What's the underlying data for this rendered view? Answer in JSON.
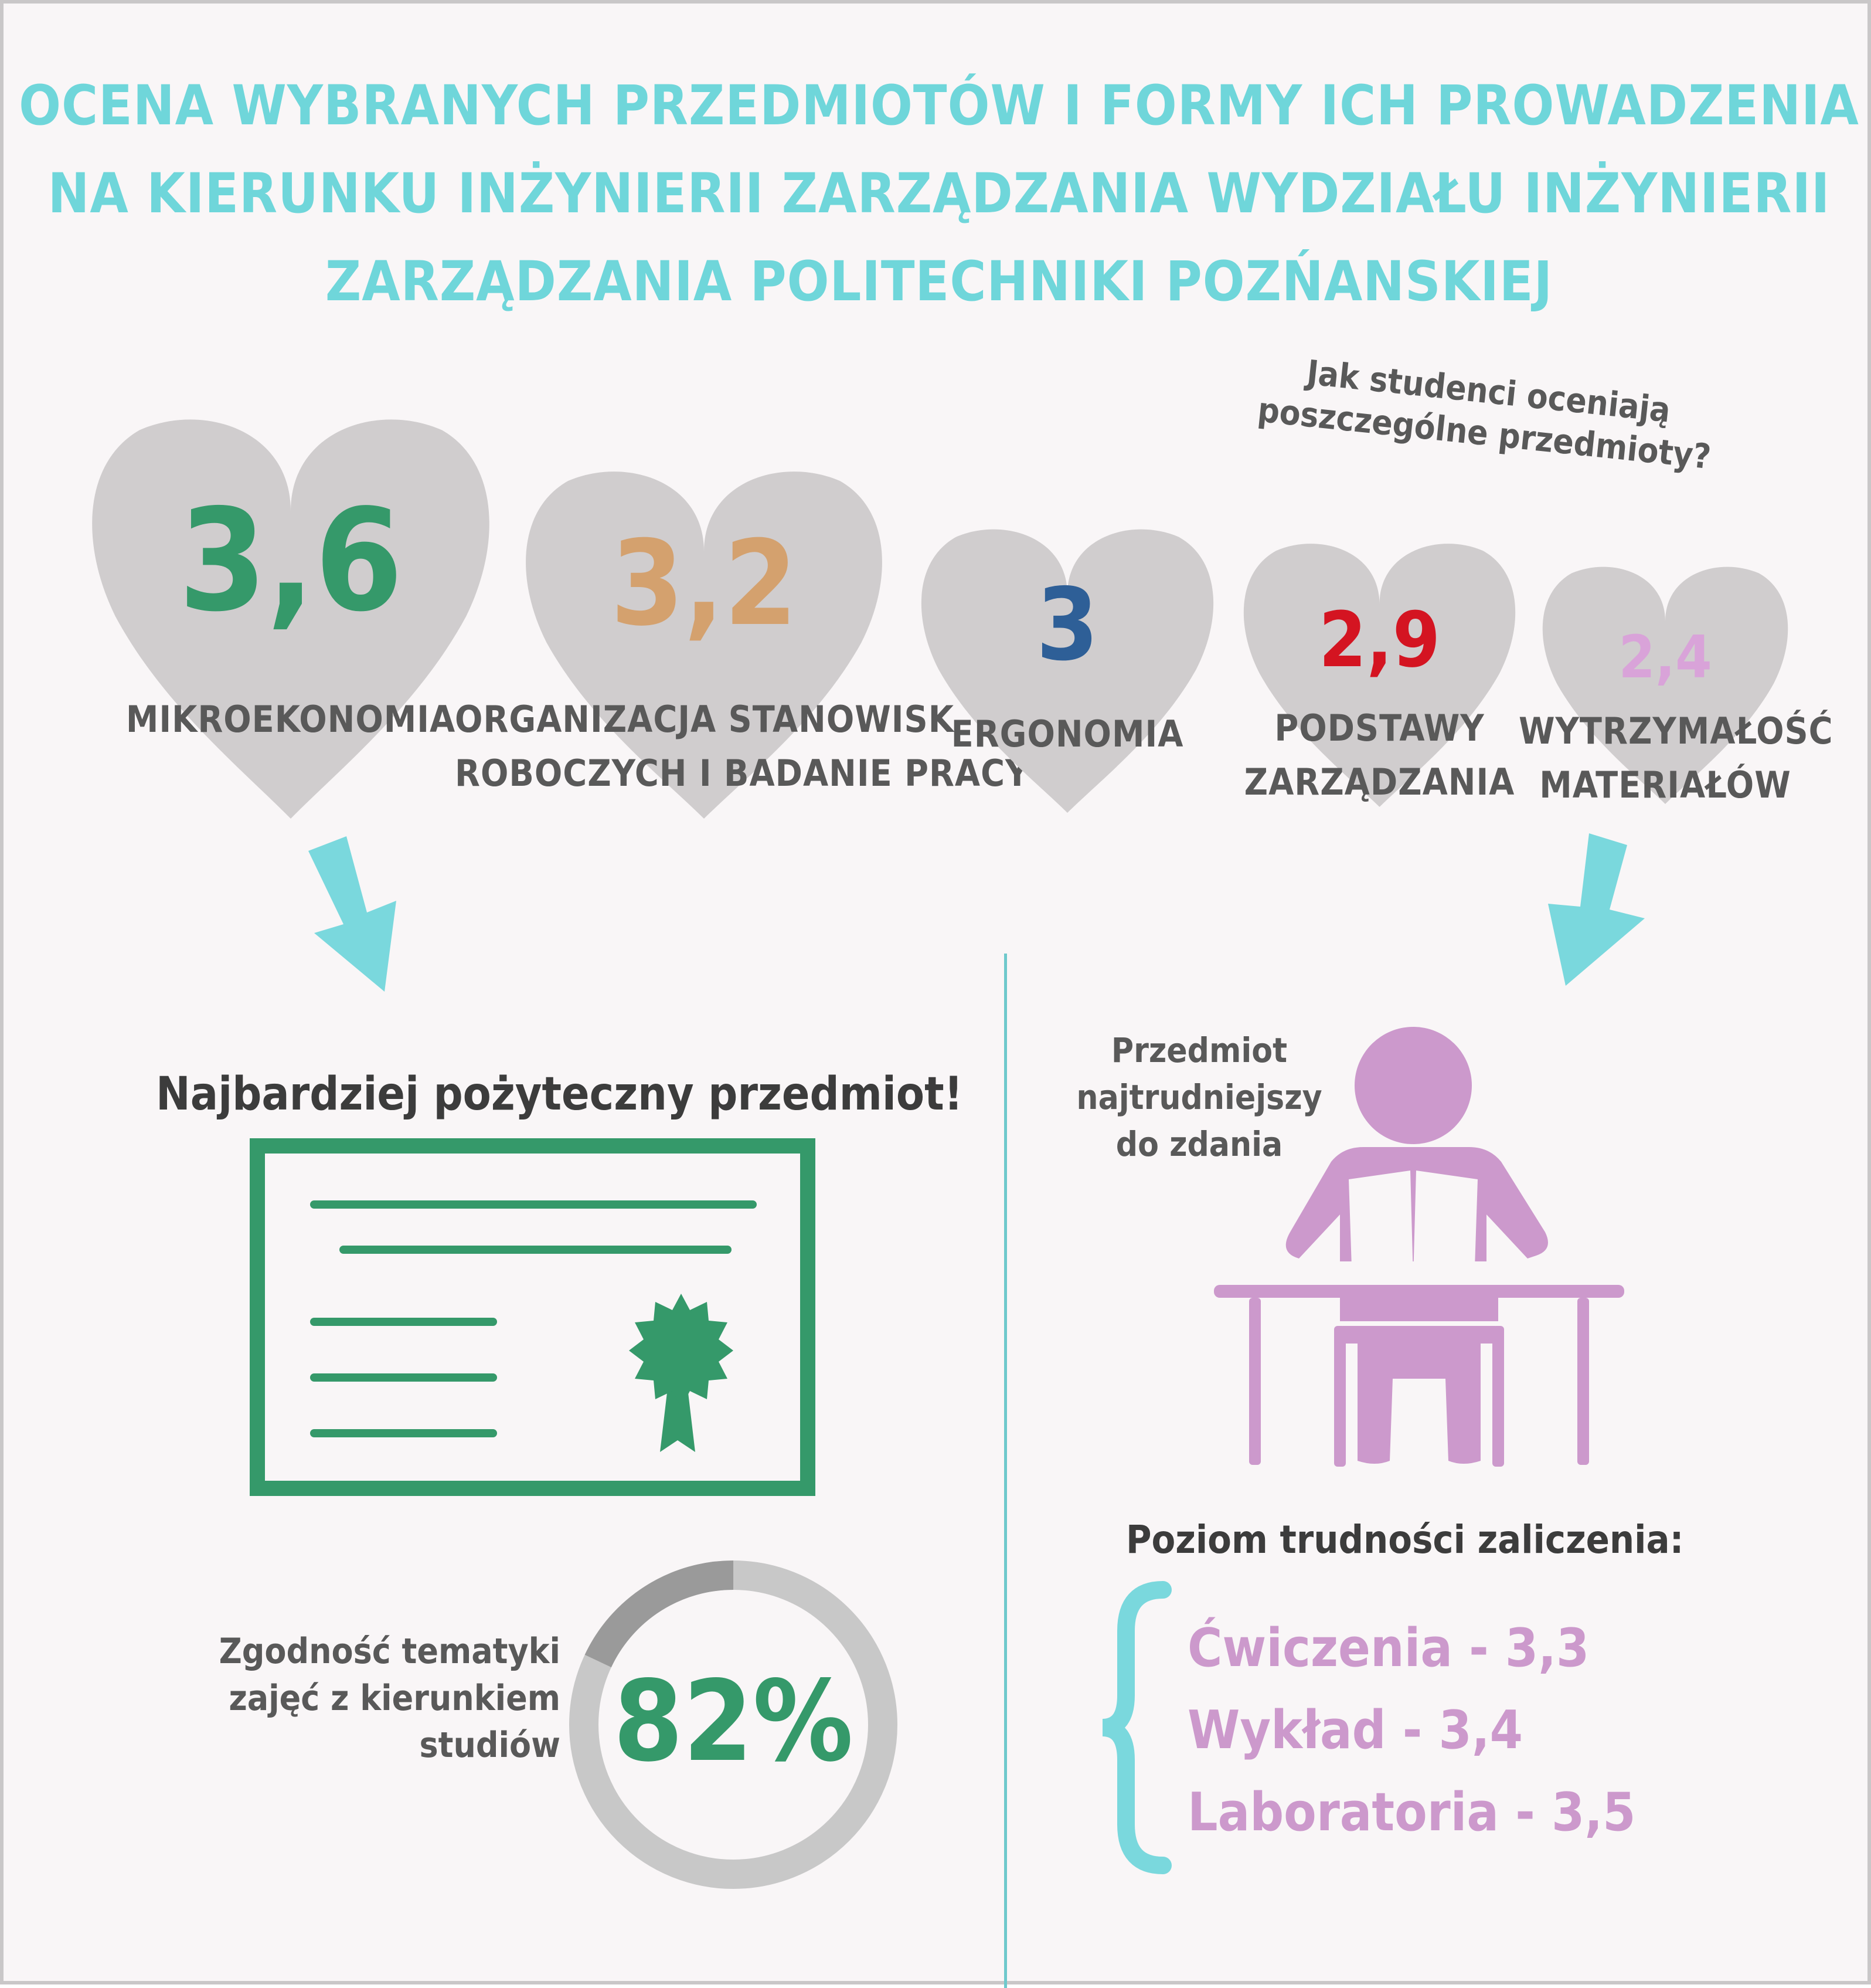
{
  "title": {
    "line1": "OCENA WYBRANYCH PRZEDMIOTÓW I FORMY ICH PROWADZENIA",
    "line2": "NA KIERUNKU INŻYNIERII ZARZĄDZANIA WYDZIAŁU INŻYNIERII",
    "line3": "ZARZĄDZANIA POLITECHNIKI POZŃANSKIEJ"
  },
  "question": {
    "line1": "Jak studenci oceniają",
    "line2": "poszczególne przedmioty?"
  },
  "subjects": [
    {
      "score": "3,6",
      "name": "MIKROEKONOMIA",
      "name2": "",
      "color": "#35996a"
    },
    {
      "score": "3,2",
      "name": "ORGANIZACJA STANOWISK",
      "name2": "ROBOCZYCH I BADANIE PRACY",
      "color": "#d4a16e"
    },
    {
      "score": "3",
      "name": "ERGONOMIA",
      "name2": "",
      "color": "#2e5f97"
    },
    {
      "score": "2,9",
      "name": "PODSTAWY",
      "name2": "ZARZĄDZANIA",
      "color": "#d41421"
    },
    {
      "score": "2,4",
      "name": "WYTRZYMAŁOŚĆ",
      "name2": "MATERIAŁÓW",
      "color": "#d9a3d9"
    }
  ],
  "useful": {
    "heading": "Najbardziej pożyteczny przedmiot!",
    "icon": "certificate-icon"
  },
  "agreement": {
    "label1": "Zgodność tematyki",
    "label2": "zajęć z kierunkiem",
    "label3": "studiów",
    "value_text": "82%",
    "percent": 82
  },
  "hardest": {
    "line1": "Przedmiot",
    "line2": "najtrudniejszy",
    "line3": "do zdania",
    "icon": "student-reading-icon"
  },
  "difficulty": {
    "heading": "Poziom trudności zaliczenia:",
    "items": [
      "Ćwiczenia - 3,3",
      "Wykład - 3,4",
      "Laboratoria - 3,5"
    ]
  },
  "colors": {
    "accent": "#6fd6da",
    "heart": "#d0cdce",
    "green": "#35996a",
    "pink": "#cc99cc",
    "text": "#595959"
  }
}
